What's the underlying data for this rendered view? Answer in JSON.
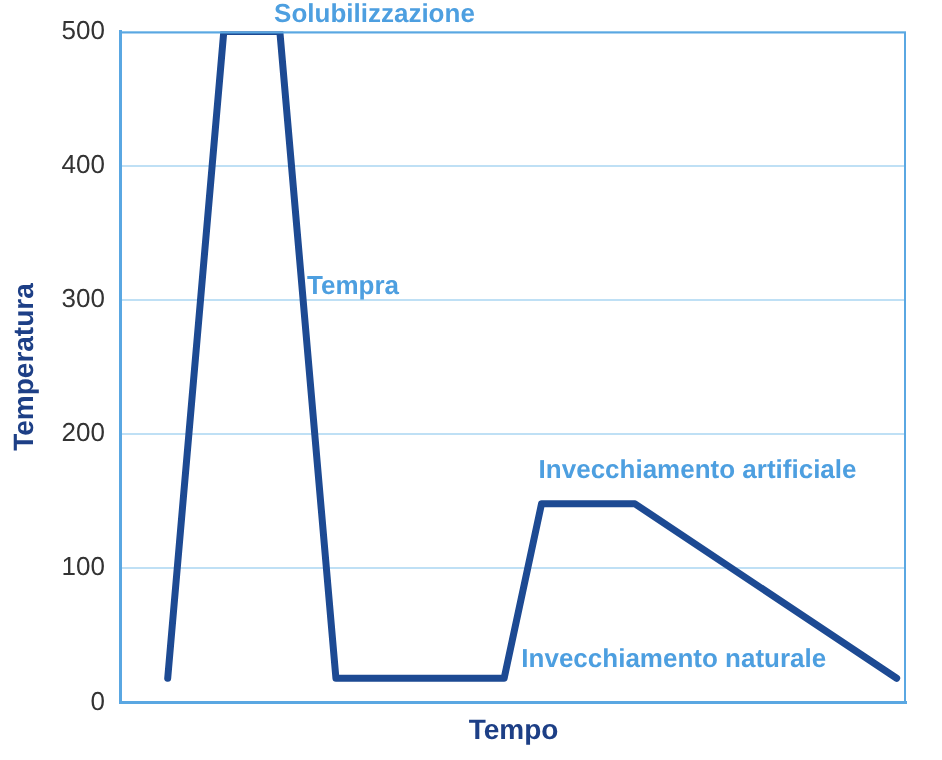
{
  "chart_data": {
    "type": "line",
    "xlabel": "Tempo",
    "ylabel": "Temperatura",
    "categories": [
      null,
      null,
      null,
      null,
      null,
      null,
      null,
      null,
      null,
      null,
      null,
      null,
      null,
      null,
      null,
      null,
      null,
      null,
      null,
      null,
      null,
      null,
      null,
      null,
      null,
      null,
      null,
      null,
      null,
      null,
      null,
      null,
      null,
      null,
      null,
      null,
      null,
      null,
      null,
      null,
      null,
      null
    ],
    "series": [
      {
        "color": "#1d4a93",
        "values": [
          null,
          null,
          18,
          null,
          null,
          500,
          null,
          null,
          500,
          null,
          null,
          18,
          null,
          null,
          null,
          null,
          null,
          null,
          null,
          null,
          18,
          null,
          148,
          null,
          null,
          null,
          null,
          148,
          null,
          null,
          null,
          null,
          null,
          null,
          null,
          null,
          null,
          null,
          null,
          null,
          null,
          18
        ]
      }
    ],
    "ylim": [
      0,
      500
    ],
    "yticks": [
      0,
      100,
      200,
      300,
      400,
      500
    ],
    "tick_labels": "y",
    "grid": "y",
    "legend": false,
    "marker": "none",
    "line_style": "solid",
    "annotations": [
      "Solubilizzazione",
      "Tempra",
      "Invecchiamento artificiale",
      "Invecchiamento naturale"
    ]
  }
}
